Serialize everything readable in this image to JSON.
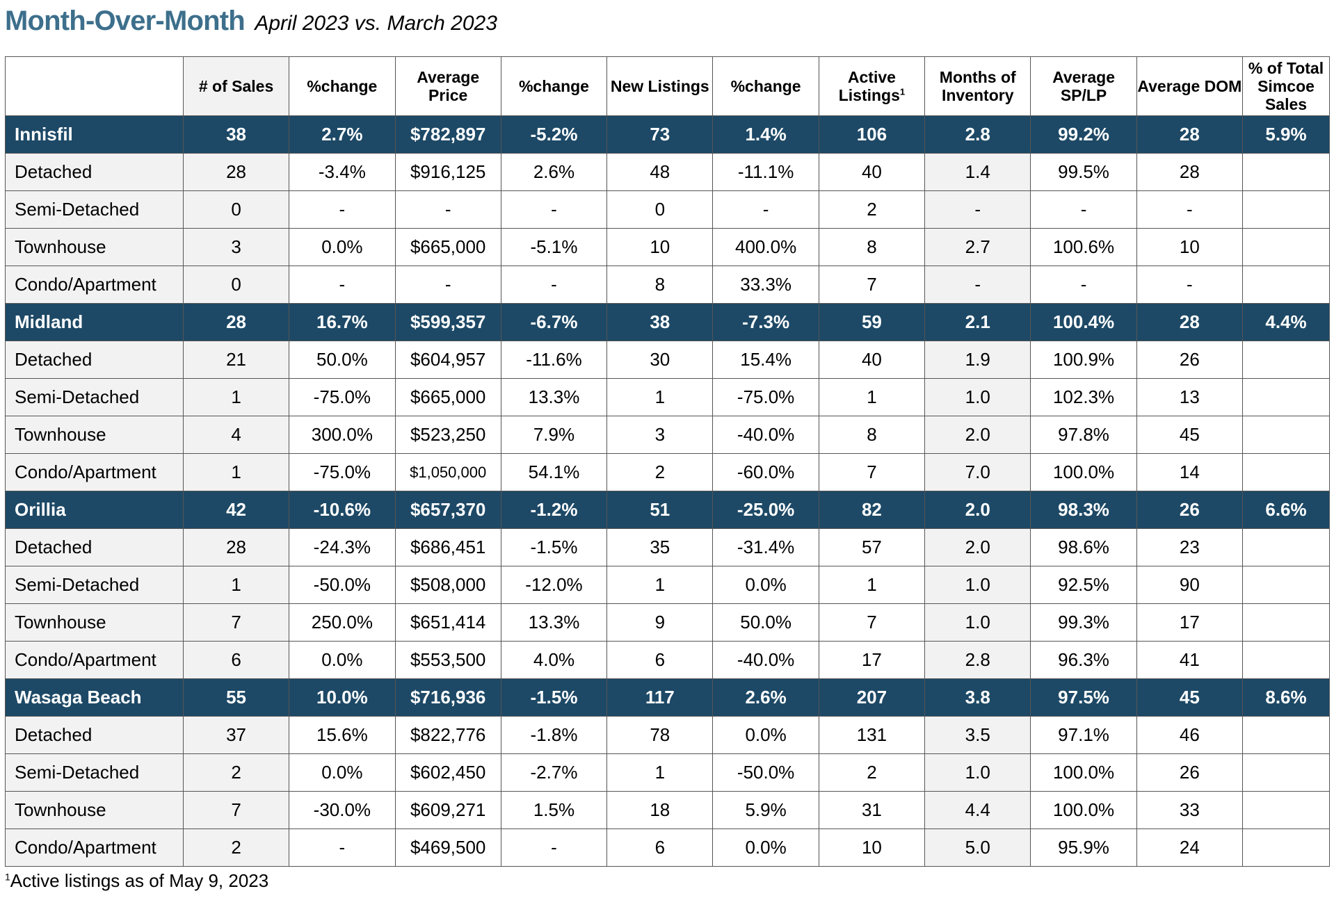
{
  "title": {
    "main": "Month-Over-Month",
    "sub": "April 2023 vs. March 2023"
  },
  "headers": [
    "",
    "# of Sales",
    "%change",
    "Average Price",
    "%change",
    "New Listings",
    "%change",
    "Active Listings",
    "Months of Inventory",
    "Average SP/LP",
    "Average DOM",
    "% of Total Simcoe Sales"
  ],
  "active_listings_sup": "1",
  "rows": [
    {
      "type": "city",
      "cells": [
        "Innisfil",
        "38",
        "2.7%",
        "$782,897",
        "-5.2%",
        "73",
        "1.4%",
        "106",
        "2.8",
        "99.2%",
        "28",
        "5.9%"
      ]
    },
    {
      "type": "sub",
      "cells": [
        "Detached",
        "28",
        "-3.4%",
        "$916,125",
        "2.6%",
        "48",
        "-11.1%",
        "40",
        "1.4",
        "99.5%",
        "28",
        ""
      ]
    },
    {
      "type": "sub",
      "cells": [
        "Semi-Detached",
        "0",
        "-",
        "-",
        "-",
        "0",
        "-",
        "2",
        "-",
        "-",
        "-",
        ""
      ]
    },
    {
      "type": "sub",
      "cells": [
        "Townhouse",
        "3",
        "0.0%",
        "$665,000",
        "-5.1%",
        "10",
        "400.0%",
        "8",
        "2.7",
        "100.6%",
        "10",
        ""
      ]
    },
    {
      "type": "sub",
      "cells": [
        "Condo/Apartment",
        "0",
        "-",
        "-",
        "-",
        "8",
        "33.3%",
        "7",
        "-",
        "-",
        "-",
        ""
      ]
    },
    {
      "type": "city",
      "cells": [
        "Midland",
        "28",
        "16.7%",
        "$599,357",
        "-6.7%",
        "38",
        "-7.3%",
        "59",
        "2.1",
        "100.4%",
        "28",
        "4.4%"
      ]
    },
    {
      "type": "sub",
      "cells": [
        "Detached",
        "21",
        "50.0%",
        "$604,957",
        "-11.6%",
        "30",
        "15.4%",
        "40",
        "1.9",
        "100.9%",
        "26",
        ""
      ]
    },
    {
      "type": "sub",
      "cells": [
        "Semi-Detached",
        "1",
        "-75.0%",
        "$665,000",
        "13.3%",
        "1",
        "-75.0%",
        "1",
        "1.0",
        "102.3%",
        "13",
        ""
      ]
    },
    {
      "type": "sub",
      "cells": [
        "Townhouse",
        "4",
        "300.0%",
        "$523,250",
        "7.9%",
        "3",
        "-40.0%",
        "8",
        "2.0",
        "97.8%",
        "45",
        ""
      ]
    },
    {
      "type": "sub",
      "small_price": true,
      "cells": [
        "Condo/Apartment",
        "1",
        "-75.0%",
        "$1,050,000",
        "54.1%",
        "2",
        "-60.0%",
        "7",
        "7.0",
        "100.0%",
        "14",
        ""
      ]
    },
    {
      "type": "city",
      "cells": [
        "Orillia",
        "42",
        "-10.6%",
        "$657,370",
        "-1.2%",
        "51",
        "-25.0%",
        "82",
        "2.0",
        "98.3%",
        "26",
        "6.6%"
      ]
    },
    {
      "type": "sub",
      "cells": [
        "Detached",
        "28",
        "-24.3%",
        "$686,451",
        "-1.5%",
        "35",
        "-31.4%",
        "57",
        "2.0",
        "98.6%",
        "23",
        ""
      ]
    },
    {
      "type": "sub",
      "cells": [
        "Semi-Detached",
        "1",
        "-50.0%",
        "$508,000",
        "-12.0%",
        "1",
        "0.0%",
        "1",
        "1.0",
        "92.5%",
        "90",
        ""
      ]
    },
    {
      "type": "sub",
      "cells": [
        "Townhouse",
        "7",
        "250.0%",
        "$651,414",
        "13.3%",
        "9",
        "50.0%",
        "7",
        "1.0",
        "99.3%",
        "17",
        ""
      ]
    },
    {
      "type": "sub",
      "cells": [
        "Condo/Apartment",
        "6",
        "0.0%",
        "$553,500",
        "4.0%",
        "6",
        "-40.0%",
        "17",
        "2.8",
        "96.3%",
        "41",
        ""
      ]
    },
    {
      "type": "city",
      "cells": [
        "Wasaga Beach",
        "55",
        "10.0%",
        "$716,936",
        "-1.5%",
        "117",
        "2.6%",
        "207",
        "3.8",
        "97.5%",
        "45",
        "8.6%"
      ]
    },
    {
      "type": "sub",
      "cells": [
        "Detached",
        "37",
        "15.6%",
        "$822,776",
        "-1.8%",
        "78",
        "0.0%",
        "131",
        "3.5",
        "97.1%",
        "46",
        ""
      ]
    },
    {
      "type": "sub",
      "cells": [
        "Semi-Detached",
        "2",
        "0.0%",
        "$602,450",
        "-2.7%",
        "1",
        "-50.0%",
        "2",
        "1.0",
        "100.0%",
        "26",
        ""
      ]
    },
    {
      "type": "sub",
      "cells": [
        "Townhouse",
        "7",
        "-30.0%",
        "$609,271",
        "1.5%",
        "18",
        "5.9%",
        "31",
        "4.4",
        "100.0%",
        "33",
        ""
      ]
    },
    {
      "type": "sub",
      "cells": [
        "Condo/Apartment",
        "2",
        "-",
        "$469,500",
        "-",
        "6",
        "0.0%",
        "10",
        "5.0",
        "95.9%",
        "24",
        ""
      ]
    }
  ],
  "footnote": {
    "sup": "1",
    "text": "Active listings as of May 9, 2023"
  },
  "colors": {
    "title": "#3d6f8c",
    "city_row_bg": "#1d4966",
    "city_row_text": "#ffffff",
    "shaded_col": "#f2f2f2"
  }
}
